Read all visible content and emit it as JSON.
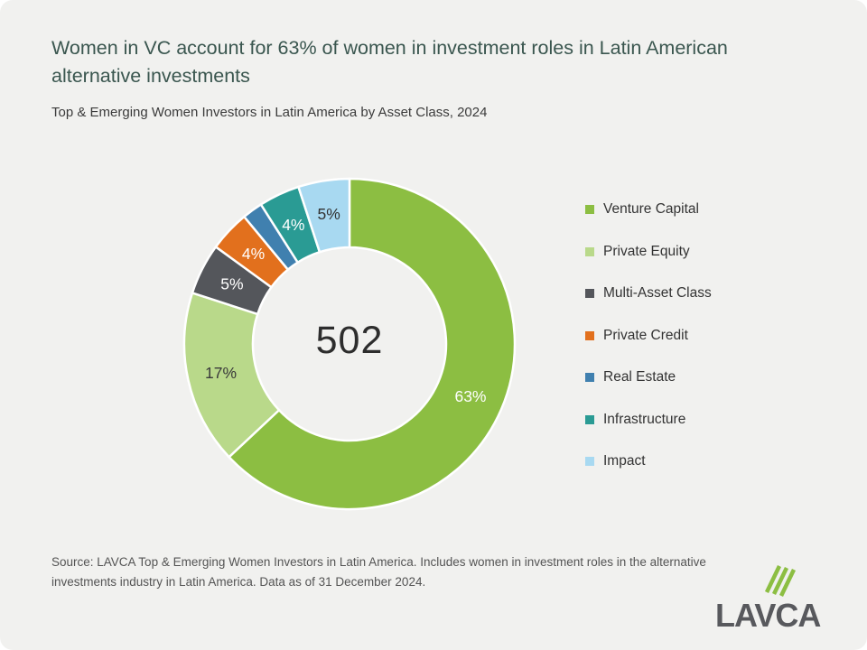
{
  "header": {
    "headline": "Women in VC account for 63% of women in investment roles in Latin American alternative investments",
    "subtitle": "Top & Emerging Women Investors in Latin America by Asset Class, 2024"
  },
  "chart_data": {
    "type": "pie",
    "variant": "donut",
    "title": "Top & Emerging Women Investors in Latin America by Asset Class, 2024",
    "center_total": "502",
    "start_angle_deg": 0,
    "direction": "clockwise",
    "legend_position": "right",
    "slices": [
      {
        "name": "Venture Capital",
        "value": 63,
        "label": "63%",
        "color": "#8CBE42",
        "label_color": "#FFFFFF"
      },
      {
        "name": "Private Equity",
        "value": 17,
        "label": "17%",
        "color": "#B9D98A",
        "label_color": "#3A3A3A"
      },
      {
        "name": "Multi-Asset Class",
        "value": 5,
        "label": "5%",
        "color": "#54565B",
        "label_color": "#FFFFFF"
      },
      {
        "name": "Private Credit",
        "value": 4,
        "label": "4%",
        "color": "#E2701D",
        "label_color": "#FFFFFF"
      },
      {
        "name": "Real Estate",
        "value": 2,
        "label": "",
        "color": "#4080AF",
        "label_color": "#FFFFFF"
      },
      {
        "name": "Infrastructure",
        "value": 4,
        "label": "4%",
        "color": "#2A9B94",
        "label_color": "#FFFFFF"
      },
      {
        "name": "Impact",
        "value": 5,
        "label": "5%",
        "color": "#A8D9F1",
        "label_color": "#333333"
      }
    ]
  },
  "footer": {
    "source": "Source: LAVCA Top & Emerging Women Investors in Latin America. Includes women in investment roles in the alternative investments industry in Latin America. Data as of 31 December 2024.",
    "logo_text": "LAVCA"
  },
  "colors": {
    "card_background": "#F1F1EF",
    "headline_text": "#3A564F",
    "slice_separator": "#FFFFFF",
    "logo_gray": "#58595D",
    "logo_green": "#8CBE42"
  }
}
